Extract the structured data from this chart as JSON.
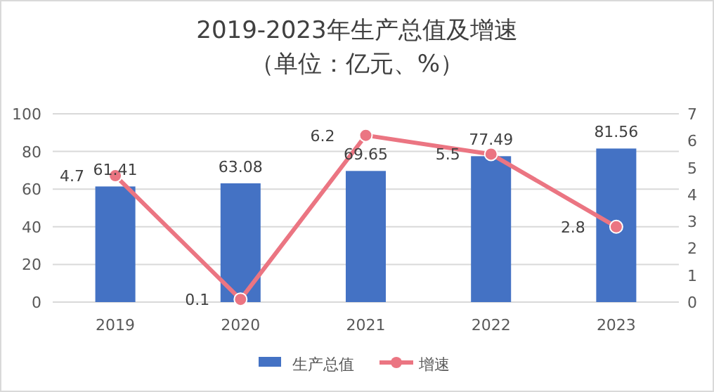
{
  "chart_data": {
    "type": "bar",
    "title": "2019-2023年生产总值及增速",
    "subtitle": "（单位：亿元、%）",
    "categories": [
      "2019",
      "2020",
      "2021",
      "2022",
      "2023"
    ],
    "series": [
      {
        "name": "生产总值",
        "color": "#4472c4",
        "values": [
          61.41,
          63.08,
          69.65,
          77.49,
          81.56
        ]
      },
      {
        "name": "增速",
        "type": "line",
        "axis": "y2",
        "color": "#eb7582",
        "marker": "circle",
        "values": [
          4.7,
          0.1,
          6.2,
          5.5,
          2.8
        ]
      }
    ],
    "ylim": [
      0,
      100
    ],
    "yticks": [
      0,
      20,
      40,
      60,
      80,
      100
    ],
    "y2lim": [
      0,
      7
    ],
    "y2ticks": [
      0,
      1,
      2,
      3,
      4,
      5,
      6,
      7
    ],
    "grid": "y",
    "legend": "bottom",
    "data_labels": true
  }
}
